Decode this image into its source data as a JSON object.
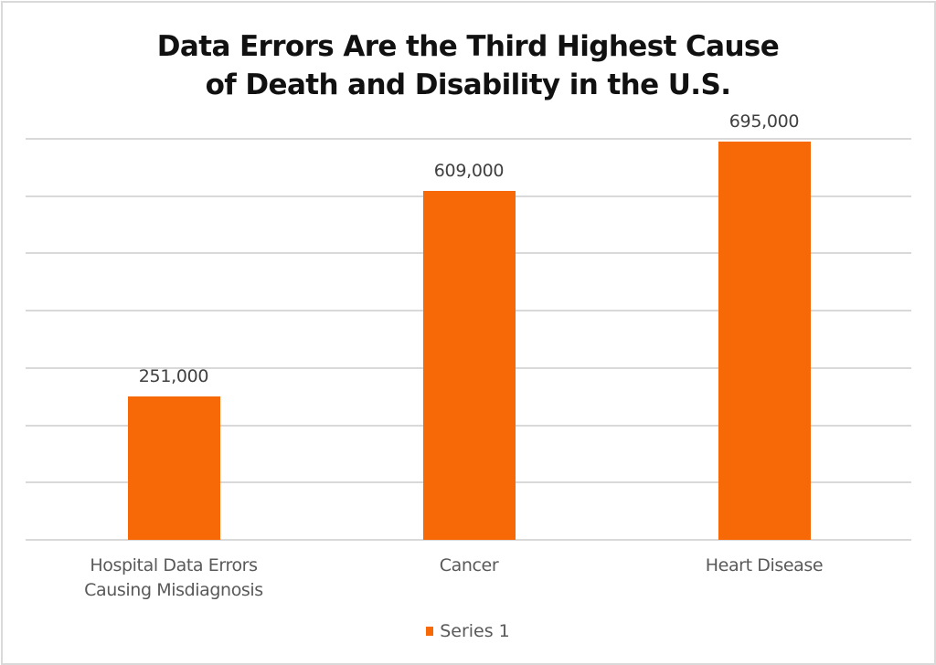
{
  "chart_data": {
    "type": "bar",
    "title": "Data Errors Are the Third Highest Cause of Death and Disability in the U.S.",
    "title_lines": [
      "Data Errors Are the Third Highest Cause",
      "of Death and Disability in the U.S."
    ],
    "categories": [
      "Hospital Data Errors Causing Misdiagnosis",
      "Cancer",
      "Heart Disease"
    ],
    "category_lines": [
      [
        "Hospital Data Errors",
        "Causing Misdiagnosis"
      ],
      [
        "Cancer"
      ],
      [
        "Heart Disease"
      ]
    ],
    "series": [
      {
        "name": "Series 1",
        "color": "#f76806",
        "values": [
          251000,
          609000,
          695000
        ]
      }
    ],
    "data_labels": [
      "251,000",
      "609,000",
      "695,000"
    ],
    "xlabel": "",
    "ylabel": "",
    "ylim": [
      0,
      700000
    ],
    "y_gridlines": [
      0,
      100000,
      200000,
      300000,
      400000,
      500000,
      600000,
      700000
    ],
    "y_tick_labels_visible": false,
    "grid": true,
    "legend": {
      "position": "bottom",
      "entries": [
        "Series 1"
      ]
    }
  }
}
